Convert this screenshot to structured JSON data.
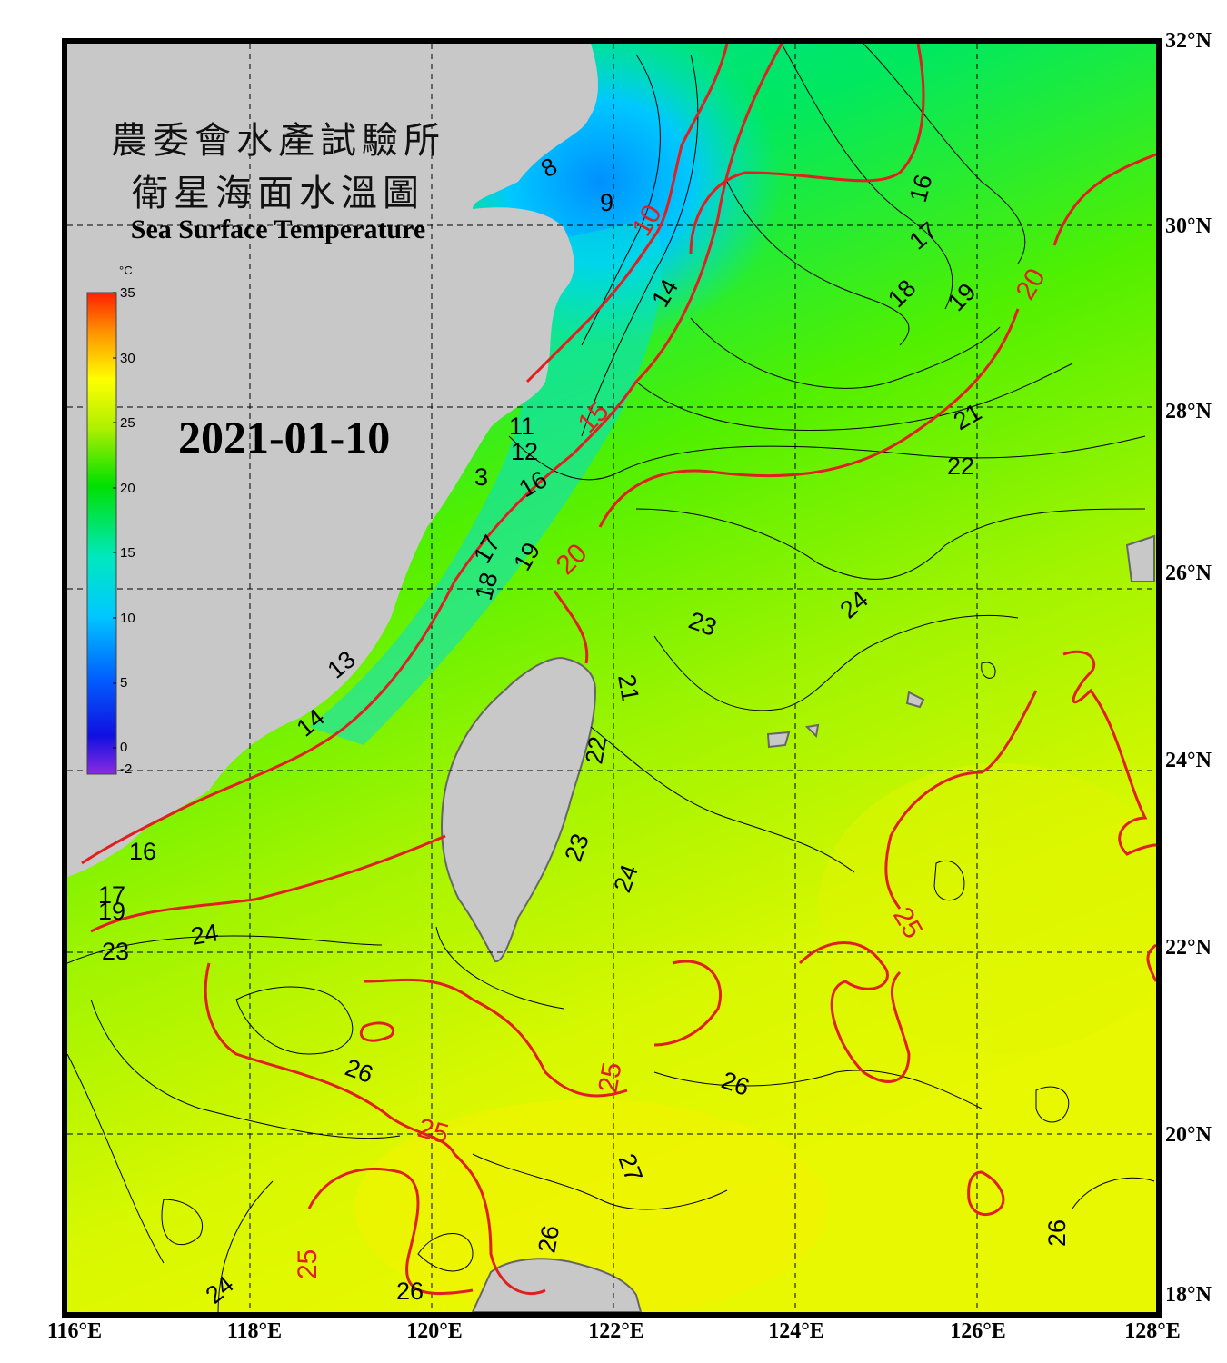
{
  "title": {
    "line1": "農委會水產試驗所",
    "line2": "衛星海面水溫圖",
    "english": "Sea Surface Temperature"
  },
  "date": "2021-01-10",
  "colorbar": {
    "unit": "°C",
    "ticks": [
      "35",
      "30",
      "25",
      "20",
      "15",
      "10",
      "5",
      "0",
      "-2"
    ],
    "min": -2,
    "max": 35
  },
  "axes": {
    "longitude_labels": [
      "116°E",
      "118°E",
      "120°E",
      "122°E",
      "124°E",
      "126°E",
      "128°E"
    ],
    "latitude_labels": [
      "32°N",
      "30°N",
      "28°N",
      "26°N",
      "24°N",
      "22°N",
      "20°N",
      "18°N"
    ],
    "lon_range": [
      116,
      128
    ],
    "lat_range": [
      18,
      32
    ]
  },
  "contour_labels": {
    "black": [
      "8",
      "9",
      "11",
      "12",
      "3",
      "14",
      "16",
      "17",
      "18",
      "19",
      "21",
      "22",
      "23",
      "24",
      "26",
      "27",
      "13"
    ],
    "red": [
      "10",
      "15",
      "20",
      "25"
    ]
  },
  "colors": {
    "land": "#c8c8c8",
    "frame": "#000000",
    "isotherm_major": "#e02020",
    "isotherm_minor": "#000000",
    "grid": "#000000"
  }
}
